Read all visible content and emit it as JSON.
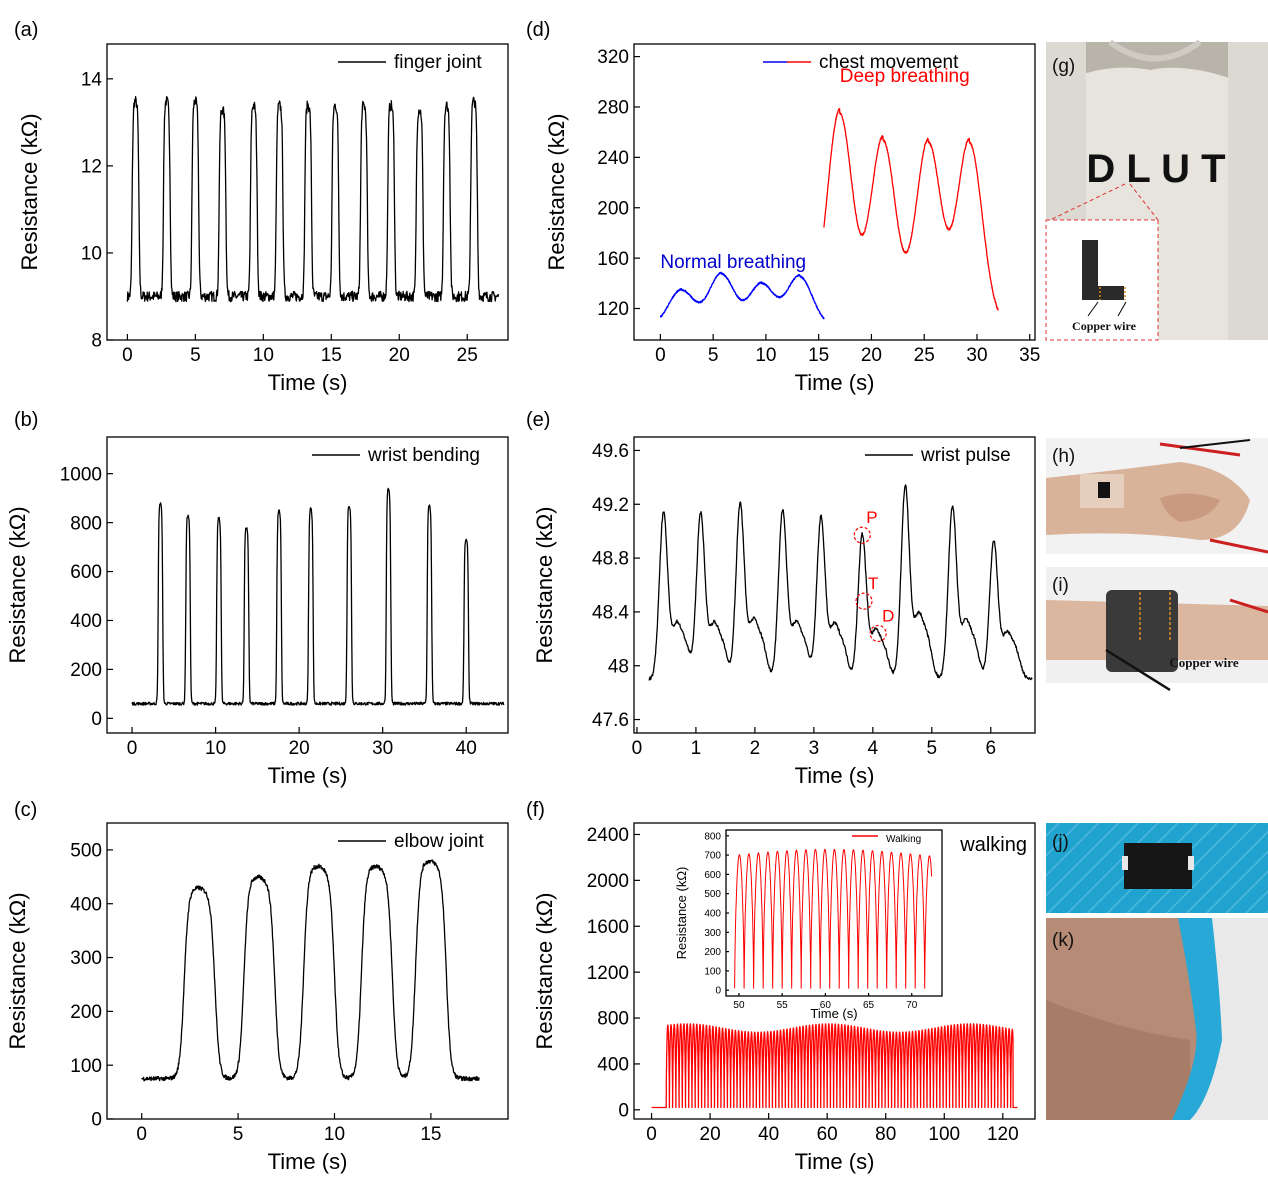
{
  "chart_data": [
    {
      "panel": "(a)",
      "type": "line",
      "xlabel": "Time (s)",
      "ylabel": "Resistance (kΩ)",
      "xlim": [
        -1.5,
        28
      ],
      "ylim": [
        8,
        14.8
      ],
      "xticks": [
        0,
        5,
        10,
        15,
        20,
        25
      ],
      "yticks": [
        8,
        10,
        12,
        14
      ],
      "legend": "top-right",
      "series": [
        {
          "name": "finger joint",
          "color": "#000000",
          "gen": "pulse",
          "x0": 0,
          "x1": 27.3,
          "base": 9.0,
          "noise": 0.12,
          "peaks_x": [
            0.6,
            2.9,
            5.0,
            7.0,
            9.3,
            11.2,
            13.3,
            15.3,
            17.4,
            19.4,
            21.5,
            23.5,
            25.5
          ],
          "peaks_y": [
            13.5,
            13.5,
            13.5,
            13.3,
            13.4,
            13.4,
            13.4,
            13.4,
            13.4,
            13.4,
            13.3,
            13.4,
            13.5
          ],
          "width": 0.5
        }
      ]
    },
    {
      "panel": "(b)",
      "type": "line",
      "xlabel": "Time (s)",
      "ylabel": "Resistance (kΩ)",
      "xlim": [
        -3,
        45
      ],
      "ylim": [
        -60,
        1150
      ],
      "xticks": [
        0,
        10,
        20,
        30,
        40
      ],
      "yticks": [
        0,
        200,
        400,
        600,
        800,
        1000
      ],
      "legend": "top-right",
      "series": [
        {
          "name": "wrist bending",
          "color": "#000000",
          "gen": "pulse",
          "x0": 0,
          "x1": 44.5,
          "base": 60,
          "noise": 6,
          "peaks_x": [
            3.4,
            6.7,
            10.4,
            13.7,
            17.6,
            21.4,
            26,
            30.7,
            35.6,
            40
          ],
          "peaks_y": [
            880,
            830,
            820,
            780,
            850,
            860,
            870,
            940,
            870,
            730
          ],
          "width": 0.55
        }
      ]
    },
    {
      "panel": "(c)",
      "type": "line",
      "xlabel": "Time (s)",
      "ylabel": "Resistance (kΩ)",
      "xlim": [
        -1.8,
        19
      ],
      "ylim": [
        0,
        550
      ],
      "xticks": [
        0,
        5,
        10,
        15
      ],
      "yticks": [
        0,
        100,
        200,
        300,
        400,
        500
      ],
      "legend": "top-right",
      "series": [
        {
          "name": "elbow joint",
          "color": "#000000",
          "gen": "pulse",
          "x0": 0,
          "x1": 17.5,
          "base": 75,
          "noise": 4,
          "peaks_x": [
            3.0,
            6.1,
            9.2,
            12.2,
            15.0
          ],
          "peaks_y": [
            430,
            450,
            470,
            470,
            480
          ],
          "width": 1.6
        }
      ]
    },
    {
      "panel": "(d)",
      "type": "line",
      "xlabel": "Time (s)",
      "ylabel": "Resistance (kΩ)",
      "xlim": [
        -2.5,
        35.5
      ],
      "ylim": [
        95,
        330
      ],
      "xticks": [
        0,
        5,
        10,
        15,
        20,
        25,
        30,
        35
      ],
      "yticks": [
        120,
        160,
        200,
        240,
        280,
        320
      ],
      "legend": "top-right",
      "legend_label": "chest movement",
      "annotations": [
        {
          "text": "Deep breathing",
          "color": "#ff0000",
          "x": 17,
          "y": 300
        },
        {
          "text": "Normal breathing",
          "color": "#0000cc",
          "x": 0,
          "y": 152
        }
      ],
      "series": [
        {
          "name": "Normal breathing",
          "color": "#0000ff",
          "gen": "breath",
          "x0": 0,
          "x1": 15.5,
          "base": 106,
          "noise": 0.6,
          "peaks_x": [
            2.0,
            5.8,
            9.6,
            13.2
          ],
          "peaks_y": [
            135,
            148,
            140,
            146
          ],
          "width": 1.6
        },
        {
          "name": "Deep breathing",
          "color": "#ff0000",
          "gen": "breath",
          "x0": 15.5,
          "x1": 32,
          "base": 108,
          "noise": 0.8,
          "peaks_x": [
            17.0,
            21.1,
            25.4,
            29.3
          ],
          "peaks_y": [
            278,
            256,
            254,
            254
          ],
          "width": 1.6
        }
      ]
    },
    {
      "panel": "(e)",
      "type": "line",
      "xlabel": "Time (s)",
      "ylabel": "Resistance (kΩ)",
      "xlim": [
        -0.05,
        6.75
      ],
      "ylim": [
        47.5,
        49.7
      ],
      "xticks": [
        0,
        1,
        2,
        3,
        4,
        5,
        6
      ],
      "yticks": [
        47.6,
        48.0,
        48.4,
        48.8,
        49.2,
        49.6
      ],
      "legend": "top-right",
      "markers": [
        {
          "label": "P",
          "x": 3.82,
          "y": 48.97
        },
        {
          "label": "T",
          "x": 3.85,
          "y": 48.48
        },
        {
          "label": "D",
          "x": 4.09,
          "y": 48.24
        }
      ],
      "series": [
        {
          "name": "wrist pulse",
          "color": "#000000",
          "gen": "pulsewave",
          "x0": 0.2,
          "x1": 6.7,
          "base": 47.9,
          "noise": 0.012,
          "peaks_x": [
            0.45,
            1.08,
            1.75,
            2.47,
            3.12,
            3.82,
            4.55,
            5.35,
            6.05
          ],
          "peaks_y": [
            49.13,
            49.13,
            49.2,
            49.15,
            49.1,
            48.97,
            49.33,
            49.18,
            48.92
          ],
          "width": 0.07
        }
      ]
    },
    {
      "panel": "(f)",
      "type": "line",
      "xlabel": "Time (s)",
      "ylabel": "Resistance (kΩ)",
      "xlim": [
        -6,
        131
      ],
      "ylim": [
        -80,
        2500
      ],
      "xticks": [
        0,
        20,
        40,
        60,
        80,
        100,
        120
      ],
      "yticks": [
        0,
        400,
        800,
        1200,
        1600,
        2000,
        2400
      ],
      "legend": "top-right",
      "legend_label": "walking",
      "series": [
        {
          "name": "walking",
          "color": "#ff0000",
          "gen": "osc",
          "x0": 0,
          "x1": 125,
          "on": 5,
          "off": 123.5,
          "base": 20,
          "amp": 730,
          "period": 1.1
        }
      ],
      "inset": {
        "xlabel": "Time (s)",
        "ylabel": "Resistance (kΩ)",
        "xlim": [
          48.5,
          73.5
        ],
        "ylim": [
          -30,
          830
        ],
        "xticks": [
          50,
          55,
          60,
          65,
          70
        ],
        "yticks": [
          0,
          100,
          200,
          300,
          400,
          500,
          600,
          700,
          800
        ],
        "legend": "top-right",
        "series": [
          {
            "name": "Walking",
            "color": "#ff0000",
            "gen": "osc",
            "x0": 49.5,
            "x1": 72.3,
            "on": 49.5,
            "off": 72.3,
            "base": 10,
            "amp": 720,
            "period": 1.1
          }
        ]
      }
    }
  ],
  "panels": {
    "a": "(a)",
    "b": "(b)",
    "c": "(c)",
    "d": "(d)",
    "e": "(e)",
    "f": "(f)",
    "g": "(g)",
    "h": "(h)",
    "i": "(i)",
    "j": "(j)",
    "k": "(k)"
  },
  "photos": {
    "g": {
      "logo_letters": "D L U T",
      "callout": "Copper wire"
    },
    "i": {
      "callout": "Copper wire"
    }
  },
  "colors": {
    "axis": "#000000",
    "red_line": "#ff0000",
    "blue_line": "#0000ff",
    "photo_bg": "#c9c5bc",
    "tape_blue": "#21a3cf"
  }
}
